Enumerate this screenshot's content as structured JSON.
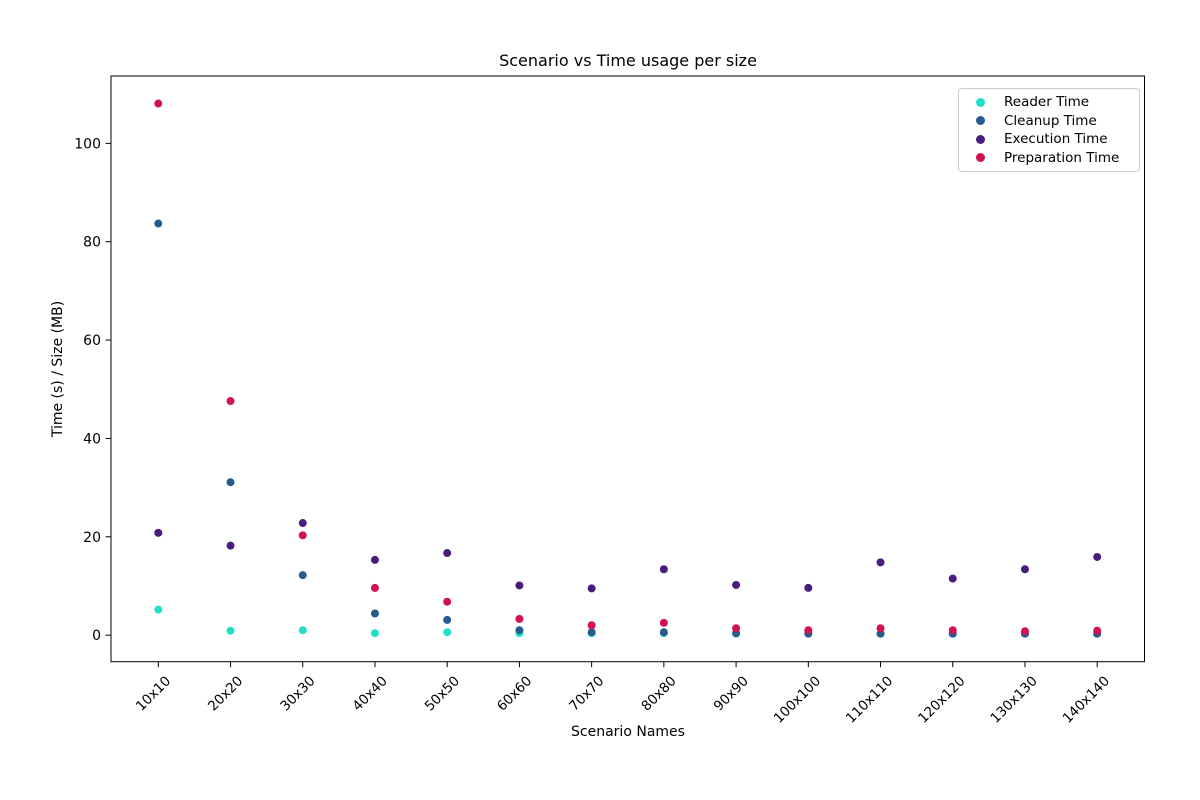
{
  "chart_data": {
    "type": "scatter",
    "title": "Scenario vs Time usage per size",
    "xlabel": "Scenario Names",
    "ylabel": "Time (s) / Size (MB)",
    "categories": [
      "10x10",
      "20x20",
      "30x30",
      "40x40",
      "50x50",
      "60x60",
      "70x70",
      "80x80",
      "90x90",
      "100x100",
      "110x110",
      "120x120",
      "130x130",
      "140x140"
    ],
    "yticks": [
      0,
      20,
      40,
      60,
      80,
      100
    ],
    "ylim": [
      -5.4,
      113.7
    ],
    "grid": false,
    "legend_position": "upper right",
    "series": [
      {
        "name": "Reader Time",
        "color": "#22e0c6",
        "values": [
          5.2,
          0.9,
          1.0,
          0.4,
          0.6,
          0.4,
          0.4,
          0.4,
          0.3,
          0.3,
          0.3,
          0.3,
          0.3,
          0.3
        ]
      },
      {
        "name": "Cleanup Time",
        "color": "#275b8c",
        "values": [
          83.7,
          31.1,
          12.2,
          4.4,
          3.1,
          1.0,
          0.6,
          0.6,
          0.4,
          0.3,
          0.3,
          0.3,
          0.3,
          0.3
        ]
      },
      {
        "name": "Execution Time",
        "color": "#481d7c",
        "values": [
          20.8,
          18.2,
          22.8,
          15.3,
          16.7,
          10.1,
          9.5,
          13.4,
          10.2,
          9.6,
          14.8,
          11.5,
          13.4,
          15.9
        ]
      },
      {
        "name": "Preparation Time",
        "color": "#d01158",
        "values": [
          108.1,
          47.6,
          20.3,
          9.6,
          6.8,
          3.3,
          2.0,
          2.5,
          1.4,
          1.0,
          1.4,
          1.0,
          0.8,
          0.9
        ]
      }
    ]
  }
}
